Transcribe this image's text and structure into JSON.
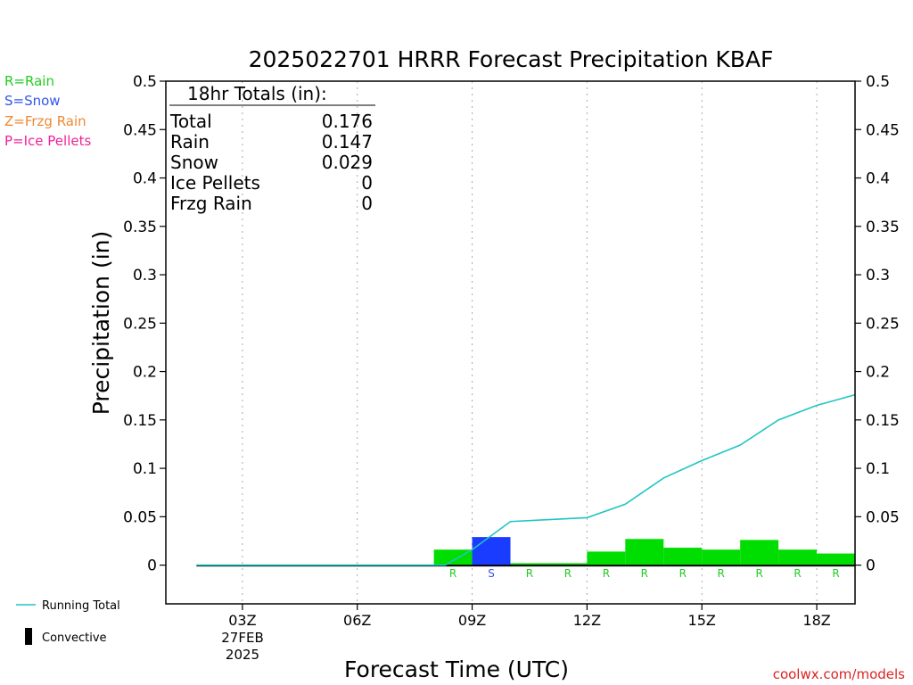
{
  "chart_data": {
    "type": "bar",
    "title": "2025022701 HRRR Forecast Precipitation KBAF",
    "xlabel": "Forecast Time (UTC)",
    "ylabel": "Precipitation (in)",
    "ylim": [
      -0.04,
      0.5
    ],
    "xlim": [
      1,
      19
    ],
    "y_ticks": [
      "0",
      "0.05",
      "0.1",
      "0.15",
      "0.2",
      "0.25",
      "0.3",
      "0.35",
      "0.4",
      "0.45",
      "0.5"
    ],
    "x_ticks": [
      {
        "hour": 3,
        "label": "03Z"
      },
      {
        "hour": 6,
        "label": "06Z"
      },
      {
        "hour": 9,
        "label": "09Z"
      },
      {
        "hour": 12,
        "label": "12Z"
      },
      {
        "hour": 15,
        "label": "15Z"
      },
      {
        "hour": 18,
        "label": "18Z"
      }
    ],
    "date_label": [
      "27FEB",
      "2025"
    ],
    "hourly": [
      {
        "hour": 2,
        "value": 0,
        "type": ""
      },
      {
        "hour": 3,
        "value": 0,
        "type": ""
      },
      {
        "hour": 4,
        "value": 0,
        "type": ""
      },
      {
        "hour": 5,
        "value": 0,
        "type": ""
      },
      {
        "hour": 6,
        "value": 0,
        "type": ""
      },
      {
        "hour": 7,
        "value": 0,
        "type": ""
      },
      {
        "hour": 8,
        "value": 0,
        "type": ""
      },
      {
        "hour": 9,
        "value": 0.016,
        "type": "R"
      },
      {
        "hour": 10,
        "value": 0.029,
        "type": "S"
      },
      {
        "hour": 11,
        "value": 0.002,
        "type": "R"
      },
      {
        "hour": 12,
        "value": 0.002,
        "type": "R"
      },
      {
        "hour": 13,
        "value": 0.014,
        "type": "R"
      },
      {
        "hour": 14,
        "value": 0.027,
        "type": "R"
      },
      {
        "hour": 15,
        "value": 0.018,
        "type": "R"
      },
      {
        "hour": 16,
        "value": 0.016,
        "type": "R"
      },
      {
        "hour": 17,
        "value": 0.026,
        "type": "R"
      },
      {
        "hour": 18,
        "value": 0.016,
        "type": "R"
      },
      {
        "hour": 19,
        "value": 0.012,
        "type": "R"
      }
    ],
    "running_total": {
      "name": "Running Total",
      "x": [
        1.8,
        3,
        6,
        8.3,
        9,
        10,
        11,
        12,
        13,
        14,
        15,
        16,
        17,
        18,
        19
      ],
      "values": [
        0,
        0,
        0,
        0,
        0.016,
        0.045,
        0.047,
        0.049,
        0.063,
        0.09,
        0.108,
        0.124,
        0.15,
        0.165,
        0.176
      ]
    },
    "totals_box": {
      "heading": "18hr Totals (in):",
      "rows": [
        {
          "label": "Total",
          "value": "0.176"
        },
        {
          "label": "Rain",
          "value": "0.147"
        },
        {
          "label": "Snow",
          "value": "0.029"
        },
        {
          "label": "Ice Pellets",
          "value": "0"
        },
        {
          "label": "Frzg Rain",
          "value": "0"
        }
      ]
    },
    "type_legend": [
      {
        "code": "R",
        "text": "R=Rain",
        "color": "#22cc22"
      },
      {
        "code": "S",
        "text": "S=Snow",
        "color": "#3355ee"
      },
      {
        "code": "Z",
        "text": "Z=Frzg Rain",
        "color": "#ee8833"
      },
      {
        "code": "P",
        "text": "P=Ice Pellets",
        "color": "#ee2299"
      }
    ],
    "bottom_legend": {
      "running_total": "Running Total",
      "convective": "Convective"
    },
    "colors": {
      "rain": "#00dd00",
      "snow": "#1a3cff",
      "running_total": "#22c4c4",
      "grid": "#aaaaaa",
      "credit": "#dd2222"
    }
  },
  "credit": "coolwx.com/models"
}
